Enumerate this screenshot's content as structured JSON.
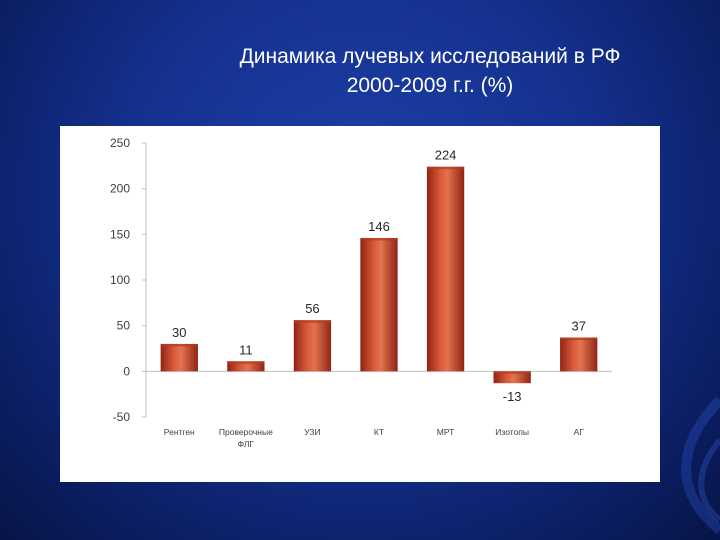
{
  "slide": {
    "title_line1": "Динамика лучевых исследований в РФ",
    "title_line2": "2000-2009 г.г. (%)"
  },
  "colors": {
    "background": "#15318f",
    "bar": "#c8452b",
    "bar_dark": "#8f2414",
    "bar_light": "#e2734f"
  },
  "chart_data": {
    "type": "bar",
    "categories": [
      "Рентген",
      "Проверочные ФЛГ",
      "УЗИ",
      "КТ",
      "МРТ",
      "Изотопы",
      "АГ"
    ],
    "category_lines": [
      [
        "Рентген"
      ],
      [
        "Проверочные",
        "ФЛГ"
      ],
      [
        "УЗИ"
      ],
      [
        "КТ"
      ],
      [
        "МРТ"
      ],
      [
        "Изотопы"
      ],
      [
        "АГ"
      ]
    ],
    "values": [
      30,
      11,
      56,
      146,
      224,
      -13,
      37
    ],
    "data_labels": [
      "30",
      "11",
      "56",
      "146",
      "224",
      "-13",
      "37"
    ],
    "ylim": [
      -50,
      250
    ],
    "yticks": [
      250,
      200,
      150,
      100,
      50,
      0,
      -50
    ],
    "ytick_labels": [
      "250",
      "200",
      "150",
      "100",
      "50",
      "0",
      "-50"
    ],
    "grid": false,
    "legend": "none"
  }
}
